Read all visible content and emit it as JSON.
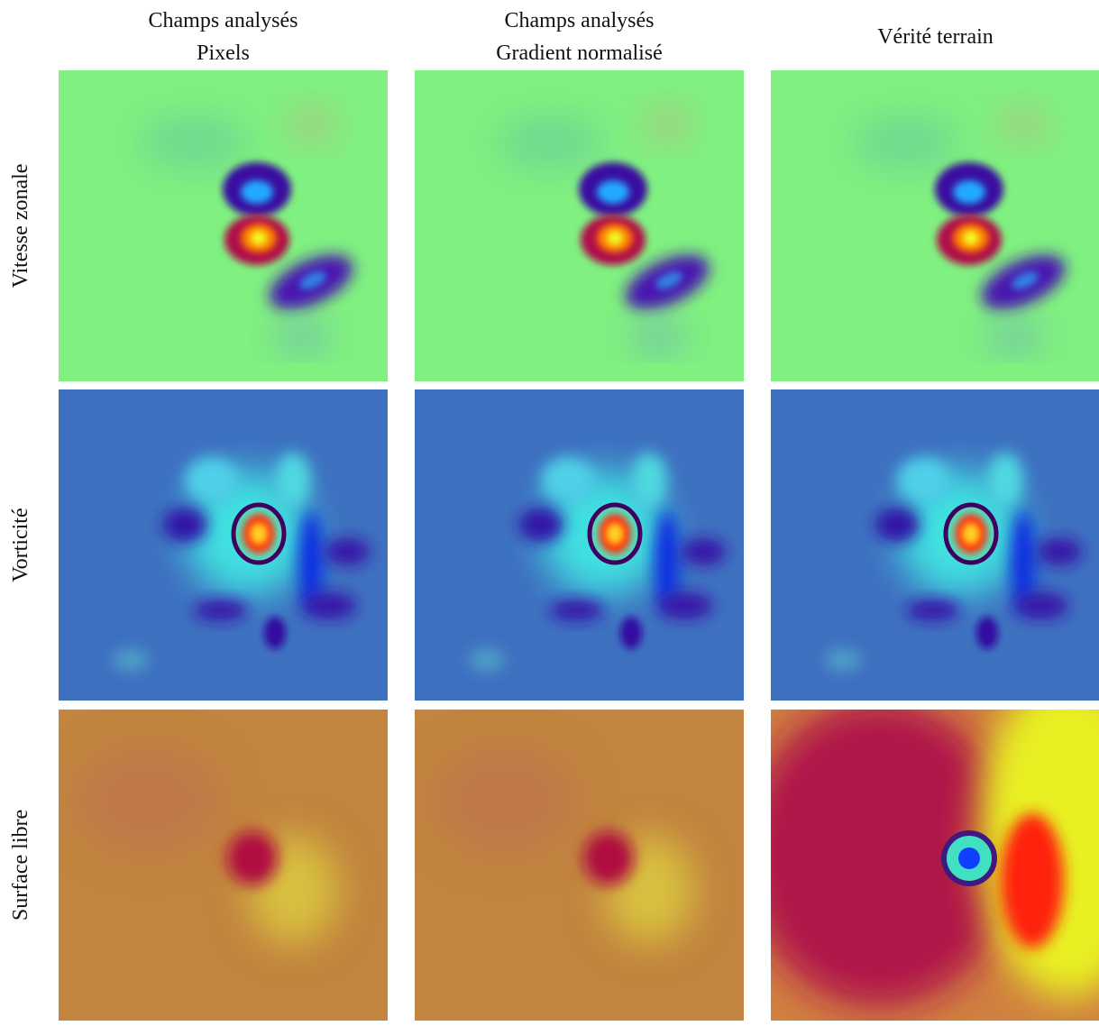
{
  "columns": [
    {
      "title_lines": [
        "Champs analysés",
        "Pixels"
      ]
    },
    {
      "title_lines": [
        "Champs analysés",
        "Gradient normalisé"
      ]
    },
    {
      "title_lines": [
        "Vérité terrain"
      ]
    }
  ],
  "rows": [
    {
      "label": "Vitesse zonale"
    },
    {
      "label": "Vorticité"
    },
    {
      "label": "Surface libre"
    }
  ]
}
